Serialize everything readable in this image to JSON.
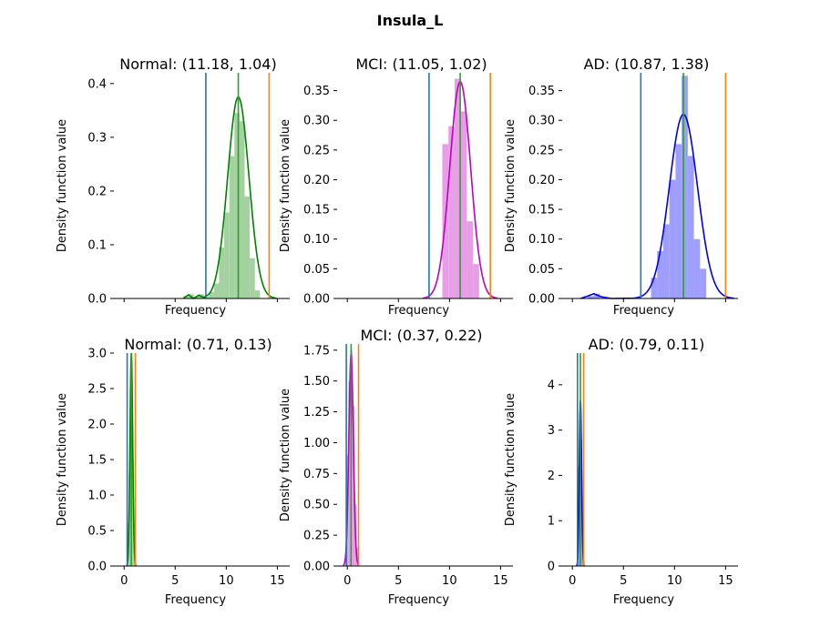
{
  "chart_data": {
    "title": "Insula_L",
    "panels": [
      {
        "type": "histogram+kde",
        "title": "Normal: (11.18, 1.04)",
        "xlabel": "Frequency",
        "ylabel": "Density function value",
        "show_x_tick_labels": false,
        "color": "#008000",
        "hist_color": "#9ecf9b",
        "xlim": [
          -1,
          15.5
        ],
        "ylim": [
          0,
          0.42
        ],
        "yticks": [
          0,
          0.1,
          0.2,
          0.3,
          0.4
        ],
        "xticks": [
          0,
          5,
          10,
          15
        ],
        "hist_bins": [
          {
            "x0": 5.8,
            "x1": 6.3,
            "height": 0.005
          },
          {
            "x0": 6.3,
            "x1": 6.8,
            "height": 0.008
          },
          {
            "x0": 6.8,
            "x1": 7.3,
            "height": 0.004
          },
          {
            "x0": 7.3,
            "x1": 7.8,
            "height": 0.008
          },
          {
            "x0": 7.8,
            "x1": 8.3,
            "height": 0.004
          },
          {
            "x0": 8.3,
            "x1": 8.8,
            "height": 0.012
          },
          {
            "x0": 8.8,
            "x1": 9.3,
            "height": 0.028
          },
          {
            "x0": 9.3,
            "x1": 9.8,
            "height": 0.095
          },
          {
            "x0": 9.8,
            "x1": 10.3,
            "height": 0.16
          },
          {
            "x0": 10.3,
            "x1": 10.8,
            "height": 0.265
          },
          {
            "x0": 10.8,
            "x1": 11.3,
            "height": 0.345
          },
          {
            "x0": 11.3,
            "x1": 11.8,
            "height": 0.33
          },
          {
            "x0": 11.8,
            "x1": 12.3,
            "height": 0.19
          },
          {
            "x0": 12.3,
            "x1": 12.8,
            "height": 0.075
          },
          {
            "x0": 12.8,
            "x1": 13.3,
            "height": 0.015
          }
        ],
        "kde": {
          "mean": 11.18,
          "std": 1.04,
          "peak": 0.375
        },
        "kde_tail": [
          {
            "x": 5.8,
            "y": 0.0
          },
          {
            "x": 6.3,
            "y": 0.007
          },
          {
            "x": 6.8,
            "y": 0.0
          },
          {
            "x": 7.3,
            "y": 0.006
          },
          {
            "x": 7.8,
            "y": 0.002
          },
          {
            "x": 8.3,
            "y": 0.008
          }
        ],
        "vlines": [
          {
            "x": 8.0,
            "color": "#1f77b4"
          },
          {
            "x": 11.18,
            "color": "#2ca02c"
          },
          {
            "x": 14.2,
            "color": "#ff7f0e"
          }
        ]
      },
      {
        "type": "histogram+kde",
        "title": "MCI: (11.05, 1.02)",
        "xlabel": "Frequency",
        "ylabel": "Density function value",
        "show_x_tick_labels": false,
        "color": "#bf00bf",
        "hist_color": "#e699e6",
        "xlim": [
          -1,
          15.5
        ],
        "ylim": [
          0,
          0.38
        ],
        "yticks": [
          0,
          0.05,
          0.1,
          0.15,
          0.2,
          0.25,
          0.3,
          0.35
        ],
        "xticks": [
          0,
          5,
          10,
          15
        ],
        "hist_bins": [
          {
            "x0": 9.3,
            "x1": 9.9,
            "height": 0.26
          },
          {
            "x0": 9.9,
            "x1": 10.5,
            "height": 0.29
          },
          {
            "x0": 10.5,
            "x1": 11.1,
            "height": 0.37
          },
          {
            "x0": 11.1,
            "x1": 11.7,
            "height": 0.315
          },
          {
            "x0": 11.7,
            "x1": 12.3,
            "height": 0.13
          },
          {
            "x0": 12.3,
            "x1": 12.9,
            "height": 0.058
          }
        ],
        "kde": {
          "mean": 11.05,
          "std": 1.02,
          "peak": 0.365
        },
        "kde_tail": [],
        "vlines": [
          {
            "x": 8.0,
            "color": "#1f77b4"
          },
          {
            "x": 11.05,
            "color": "#2ca02c"
          },
          {
            "x": 14.0,
            "color": "#ff7f0e"
          }
        ]
      },
      {
        "type": "histogram+kde",
        "title": "AD: (10.87, 1.38)",
        "xlabel": "Frequency",
        "ylabel": "Density function value",
        "show_x_tick_labels": false,
        "color": "#0000e6",
        "hist_color": "#9999ff",
        "xlim": [
          -1,
          15.5
        ],
        "ylim": [
          0,
          0.38
        ],
        "yticks": [
          0,
          0.05,
          0.1,
          0.15,
          0.2,
          0.25,
          0.3,
          0.35
        ],
        "xticks": [
          0,
          5,
          10,
          15
        ],
        "hist_bins": [
          {
            "x0": 1.5,
            "x1": 2.1,
            "height": 0.004
          },
          {
            "x0": 2.1,
            "x1": 2.7,
            "height": 0.008
          },
          {
            "x0": 7.7,
            "x1": 8.3,
            "height": 0.035
          },
          {
            "x0": 8.3,
            "x1": 8.9,
            "height": 0.08
          },
          {
            "x0": 8.9,
            "x1": 9.5,
            "height": 0.125
          },
          {
            "x0": 9.5,
            "x1": 10.1,
            "height": 0.2
          },
          {
            "x0": 10.1,
            "x1": 10.7,
            "height": 0.26
          },
          {
            "x0": 10.7,
            "x1": 11.3,
            "height": 0.375
          },
          {
            "x0": 11.3,
            "x1": 11.9,
            "height": 0.24
          },
          {
            "x0": 11.9,
            "x1": 12.5,
            "height": 0.1
          },
          {
            "x0": 12.5,
            "x1": 13.1,
            "height": 0.05
          }
        ],
        "kde": {
          "mean": 10.87,
          "std": 1.38,
          "peak": 0.31
        },
        "kde_tail": [
          {
            "x": 0.8,
            "y": 0.0
          },
          {
            "x": 1.5,
            "y": 0.004
          },
          {
            "x": 2.1,
            "y": 0.008
          },
          {
            "x": 2.8,
            "y": 0.003
          },
          {
            "x": 3.8,
            "y": 0.0
          }
        ],
        "vlines": [
          {
            "x": 6.7,
            "color": "#1f77b4"
          },
          {
            "x": 10.87,
            "color": "#2ca02c"
          },
          {
            "x": 15.0,
            "color": "#ff7f0e"
          }
        ]
      },
      {
        "type": "histogram+kde",
        "title": "Normal: (0.71, 0.13)",
        "xlabel": "Frequency",
        "ylabel": "Density function value",
        "show_x_tick_labels": true,
        "color": "#008000",
        "hist_color": "#9ecf9b",
        "xlim": [
          -1,
          15.5
        ],
        "ylim": [
          0,
          3.0
        ],
        "yticks": [
          0.0,
          0.5,
          1.0,
          1.5,
          2.0,
          2.5,
          3.0
        ],
        "xticks": [
          0,
          5,
          10,
          15
        ],
        "hist_bins": [
          {
            "x0": 0.35,
            "x1": 0.45,
            "height": 0.6
          },
          {
            "x0": 0.45,
            "x1": 0.55,
            "height": 1.3
          },
          {
            "x0": 0.55,
            "x1": 0.65,
            "height": 2.5
          },
          {
            "x0": 0.65,
            "x1": 0.75,
            "height": 2.9
          },
          {
            "x0": 0.75,
            "x1": 0.85,
            "height": 2.6
          },
          {
            "x0": 0.85,
            "x1": 0.95,
            "height": 1.5
          },
          {
            "x0": 0.95,
            "x1": 1.05,
            "height": 0.6
          }
        ],
        "kde": {
          "mean": 0.71,
          "std": 0.13,
          "peak": 3.0
        },
        "kde_tail": [],
        "vlines": [
          {
            "x": 0.3,
            "color": "#1f77b4"
          },
          {
            "x": 0.71,
            "color": "#2ca02c"
          },
          {
            "x": 1.1,
            "color": "#ff7f0e"
          }
        ]
      },
      {
        "type": "histogram+kde",
        "title": "MCI: (0.37, 0.22)",
        "xlabel": "Frequency",
        "ylabel": "Density function value",
        "show_x_tick_labels": true,
        "color": "#bf00bf",
        "hist_color": "#e699e6",
        "xlim": [
          -1,
          15.5
        ],
        "ylim": [
          0,
          1.8
        ],
        "yticks": [
          0.0,
          0.25,
          0.5,
          0.75,
          1.0,
          1.25,
          1.5,
          1.75
        ],
        "xticks": [
          0,
          5,
          10,
          15
        ],
        "hist_bins": [
          {
            "x0": -0.1,
            "x1": 0.1,
            "height": 0.9
          },
          {
            "x0": 0.1,
            "x1": 0.3,
            "height": 1.5
          },
          {
            "x0": 0.3,
            "x1": 0.5,
            "height": 1.75
          },
          {
            "x0": 0.5,
            "x1": 0.7,
            "height": 1.3
          },
          {
            "x0": 0.7,
            "x1": 0.9,
            "height": 0.5
          },
          {
            "x0": 0.9,
            "x1": 1.1,
            "height": 0.15
          }
        ],
        "kde": {
          "mean": 0.37,
          "std": 0.22,
          "peak": 1.72
        },
        "kde_tail": [],
        "vlines": [
          {
            "x": -0.1,
            "color": "#1f77b4"
          },
          {
            "x": 0.37,
            "color": "#2ca02c"
          },
          {
            "x": 1.1,
            "color": "#ff7f0e"
          }
        ]
      },
      {
        "type": "histogram+kde",
        "title": "AD: (0.79, 0.11)",
        "xlabel": "Frequency",
        "ylabel": "Density function value",
        "show_x_tick_labels": true,
        "color": "#0000e6",
        "hist_color": "#9999ff",
        "xlim": [
          -1,
          15.5
        ],
        "ylim": [
          0,
          4.7
        ],
        "yticks": [
          0,
          1,
          2,
          3,
          4
        ],
        "xticks": [
          0,
          5,
          10,
          15
        ],
        "hist_bins": [
          {
            "x0": 0.45,
            "x1": 0.55,
            "height": 1.0
          },
          {
            "x0": 0.55,
            "x1": 0.65,
            "height": 2.2
          },
          {
            "x0": 0.65,
            "x1": 0.75,
            "height": 3.2
          },
          {
            "x0": 0.75,
            "x1": 0.85,
            "height": 4.4
          },
          {
            "x0": 0.85,
            "x1": 0.95,
            "height": 2.8
          },
          {
            "x0": 0.95,
            "x1": 1.05,
            "height": 1.1
          }
        ],
        "kde": {
          "mean": 0.79,
          "std": 0.11,
          "peak": 3.65
        },
        "kde_tail": [],
        "vlines": [
          {
            "x": 0.5,
            "color": "#1f77b4"
          },
          {
            "x": 0.79,
            "color": "#2ca02c"
          },
          {
            "x": 1.1,
            "color": "#ff7f0e"
          }
        ]
      }
    ]
  }
}
